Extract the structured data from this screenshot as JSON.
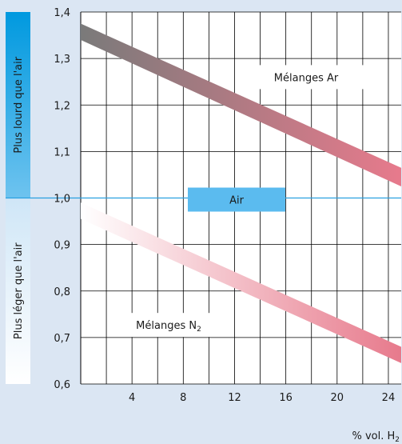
{
  "chart_data": {
    "type": "area",
    "title": "",
    "xlabel": "% vol. H",
    "xlabel_sub": "2",
    "ylabel": "",
    "xlim": [
      0,
      25
    ],
    "ylim": [
      0.6,
      1.4
    ],
    "x_ticks": [
      {
        "value": 4,
        "label": "4"
      },
      {
        "value": 8,
        "label": "8"
      },
      {
        "value": 12,
        "label": "12"
      },
      {
        "value": 16,
        "label": "16"
      },
      {
        "value": 20,
        "label": "20"
      },
      {
        "value": 24,
        "label": "24"
      }
    ],
    "y_ticks": [
      {
        "value": 0.6,
        "label": "0,6"
      },
      {
        "value": 0.7,
        "label": "0,7"
      },
      {
        "value": 0.8,
        "label": "0,8"
      },
      {
        "value": 0.9,
        "label": "0,9"
      },
      {
        "value": 1.0,
        "label": "1,0"
      },
      {
        "value": 1.1,
        "label": "1,1"
      },
      {
        "value": 1.2,
        "label": "1,2"
      },
      {
        "value": 1.3,
        "label": "1,3"
      },
      {
        "value": 1.4,
        "label": "1,4"
      }
    ],
    "grid": true,
    "reference_line": {
      "y": 1.0,
      "label": "Air"
    },
    "side_labels": {
      "upper": "Plus lourd que l'air",
      "lower": "Plus léger que l'air"
    },
    "series": [
      {
        "name": "Mélanges Ar",
        "name_sub": "",
        "x": [
          0,
          25
        ],
        "upper": [
          1.375,
          1.065
        ],
        "lower": [
          1.34,
          1.025
        ],
        "color_start": "#7a7a7a",
        "color_end": "#e77a8c"
      },
      {
        "name": "Mélanges N",
        "name_sub": "2",
        "x": [
          0,
          25
        ],
        "upper": [
          0.99,
          0.68
        ],
        "lower": [
          0.955,
          0.645
        ],
        "color_start": "#ffffff",
        "color_end": "#e77a8c"
      }
    ],
    "colors": {
      "background": "#dbe6f3",
      "plot_background": "#ffffff",
      "grid": "#000000",
      "reference_line": "#2aa0e0",
      "air_box": "#5bbbef",
      "upper_bar_top": "#0099df",
      "upper_bar_bottom": "#6ec3ef",
      "lower_bar_top": "#cfe6f7",
      "lower_bar_bottom": "#ffffff"
    }
  }
}
